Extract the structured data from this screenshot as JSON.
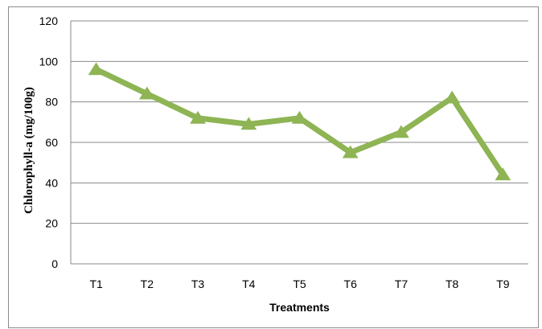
{
  "chart_data": {
    "type": "line",
    "title": "",
    "xlabel": "Treatments",
    "ylabel": "Chlorophyll-a (mg/100g)",
    "categories": [
      "T1",
      "T2",
      "T3",
      "T4",
      "T5",
      "T6",
      "T7",
      "T8",
      "T9"
    ],
    "series": [
      {
        "values": [
          96,
          84,
          72,
          69,
          72,
          55,
          65,
          82,
          44
        ],
        "color": "#8eb454",
        "marker": "triangle"
      }
    ],
    "ylim": [
      0,
      120
    ],
    "yticks": [
      0,
      20,
      40,
      60,
      80,
      100,
      120
    ],
    "grid": true,
    "legend": "none"
  }
}
